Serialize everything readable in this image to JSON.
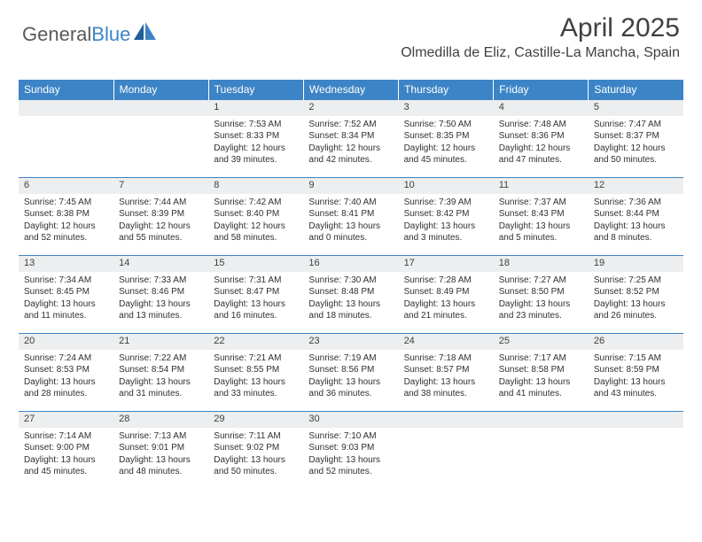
{
  "logo": {
    "text1": "General",
    "text2": "Blue"
  },
  "title": "April 2025",
  "location": "Olmedilla de Eliz, Castille-La Mancha, Spain",
  "dayHeaders": [
    "Sunday",
    "Monday",
    "Tuesday",
    "Wednesday",
    "Thursday",
    "Friday",
    "Saturday"
  ],
  "colors": {
    "headerBg": "#3d84c6",
    "headerText": "#ffffff",
    "dayNumBg": "#eceeef",
    "border": "#3d84c6",
    "bodyText": "#303030"
  },
  "weeks": [
    [
      {
        "n": "",
        "lines": [
          "",
          "",
          "",
          ""
        ]
      },
      {
        "n": "",
        "lines": [
          "",
          "",
          "",
          ""
        ]
      },
      {
        "n": "1",
        "lines": [
          "Sunrise: 7:53 AM",
          "Sunset: 8:33 PM",
          "Daylight: 12 hours",
          "and 39 minutes."
        ]
      },
      {
        "n": "2",
        "lines": [
          "Sunrise: 7:52 AM",
          "Sunset: 8:34 PM",
          "Daylight: 12 hours",
          "and 42 minutes."
        ]
      },
      {
        "n": "3",
        "lines": [
          "Sunrise: 7:50 AM",
          "Sunset: 8:35 PM",
          "Daylight: 12 hours",
          "and 45 minutes."
        ]
      },
      {
        "n": "4",
        "lines": [
          "Sunrise: 7:48 AM",
          "Sunset: 8:36 PM",
          "Daylight: 12 hours",
          "and 47 minutes."
        ]
      },
      {
        "n": "5",
        "lines": [
          "Sunrise: 7:47 AM",
          "Sunset: 8:37 PM",
          "Daylight: 12 hours",
          "and 50 minutes."
        ]
      }
    ],
    [
      {
        "n": "6",
        "lines": [
          "Sunrise: 7:45 AM",
          "Sunset: 8:38 PM",
          "Daylight: 12 hours",
          "and 52 minutes."
        ]
      },
      {
        "n": "7",
        "lines": [
          "Sunrise: 7:44 AM",
          "Sunset: 8:39 PM",
          "Daylight: 12 hours",
          "and 55 minutes."
        ]
      },
      {
        "n": "8",
        "lines": [
          "Sunrise: 7:42 AM",
          "Sunset: 8:40 PM",
          "Daylight: 12 hours",
          "and 58 minutes."
        ]
      },
      {
        "n": "9",
        "lines": [
          "Sunrise: 7:40 AM",
          "Sunset: 8:41 PM",
          "Daylight: 13 hours",
          "and 0 minutes."
        ]
      },
      {
        "n": "10",
        "lines": [
          "Sunrise: 7:39 AM",
          "Sunset: 8:42 PM",
          "Daylight: 13 hours",
          "and 3 minutes."
        ]
      },
      {
        "n": "11",
        "lines": [
          "Sunrise: 7:37 AM",
          "Sunset: 8:43 PM",
          "Daylight: 13 hours",
          "and 5 minutes."
        ]
      },
      {
        "n": "12",
        "lines": [
          "Sunrise: 7:36 AM",
          "Sunset: 8:44 PM",
          "Daylight: 13 hours",
          "and 8 minutes."
        ]
      }
    ],
    [
      {
        "n": "13",
        "lines": [
          "Sunrise: 7:34 AM",
          "Sunset: 8:45 PM",
          "Daylight: 13 hours",
          "and 11 minutes."
        ]
      },
      {
        "n": "14",
        "lines": [
          "Sunrise: 7:33 AM",
          "Sunset: 8:46 PM",
          "Daylight: 13 hours",
          "and 13 minutes."
        ]
      },
      {
        "n": "15",
        "lines": [
          "Sunrise: 7:31 AM",
          "Sunset: 8:47 PM",
          "Daylight: 13 hours",
          "and 16 minutes."
        ]
      },
      {
        "n": "16",
        "lines": [
          "Sunrise: 7:30 AM",
          "Sunset: 8:48 PM",
          "Daylight: 13 hours",
          "and 18 minutes."
        ]
      },
      {
        "n": "17",
        "lines": [
          "Sunrise: 7:28 AM",
          "Sunset: 8:49 PM",
          "Daylight: 13 hours",
          "and 21 minutes."
        ]
      },
      {
        "n": "18",
        "lines": [
          "Sunrise: 7:27 AM",
          "Sunset: 8:50 PM",
          "Daylight: 13 hours",
          "and 23 minutes."
        ]
      },
      {
        "n": "19",
        "lines": [
          "Sunrise: 7:25 AM",
          "Sunset: 8:52 PM",
          "Daylight: 13 hours",
          "and 26 minutes."
        ]
      }
    ],
    [
      {
        "n": "20",
        "lines": [
          "Sunrise: 7:24 AM",
          "Sunset: 8:53 PM",
          "Daylight: 13 hours",
          "and 28 minutes."
        ]
      },
      {
        "n": "21",
        "lines": [
          "Sunrise: 7:22 AM",
          "Sunset: 8:54 PM",
          "Daylight: 13 hours",
          "and 31 minutes."
        ]
      },
      {
        "n": "22",
        "lines": [
          "Sunrise: 7:21 AM",
          "Sunset: 8:55 PM",
          "Daylight: 13 hours",
          "and 33 minutes."
        ]
      },
      {
        "n": "23",
        "lines": [
          "Sunrise: 7:19 AM",
          "Sunset: 8:56 PM",
          "Daylight: 13 hours",
          "and 36 minutes."
        ]
      },
      {
        "n": "24",
        "lines": [
          "Sunrise: 7:18 AM",
          "Sunset: 8:57 PM",
          "Daylight: 13 hours",
          "and 38 minutes."
        ]
      },
      {
        "n": "25",
        "lines": [
          "Sunrise: 7:17 AM",
          "Sunset: 8:58 PM",
          "Daylight: 13 hours",
          "and 41 minutes."
        ]
      },
      {
        "n": "26",
        "lines": [
          "Sunrise: 7:15 AM",
          "Sunset: 8:59 PM",
          "Daylight: 13 hours",
          "and 43 minutes."
        ]
      }
    ],
    [
      {
        "n": "27",
        "lines": [
          "Sunrise: 7:14 AM",
          "Sunset: 9:00 PM",
          "Daylight: 13 hours",
          "and 45 minutes."
        ]
      },
      {
        "n": "28",
        "lines": [
          "Sunrise: 7:13 AM",
          "Sunset: 9:01 PM",
          "Daylight: 13 hours",
          "and 48 minutes."
        ]
      },
      {
        "n": "29",
        "lines": [
          "Sunrise: 7:11 AM",
          "Sunset: 9:02 PM",
          "Daylight: 13 hours",
          "and 50 minutes."
        ]
      },
      {
        "n": "30",
        "lines": [
          "Sunrise: 7:10 AM",
          "Sunset: 9:03 PM",
          "Daylight: 13 hours",
          "and 52 minutes."
        ]
      },
      {
        "n": "",
        "lines": [
          "",
          "",
          "",
          ""
        ]
      },
      {
        "n": "",
        "lines": [
          "",
          "",
          "",
          ""
        ]
      },
      {
        "n": "",
        "lines": [
          "",
          "",
          "",
          ""
        ]
      }
    ]
  ]
}
